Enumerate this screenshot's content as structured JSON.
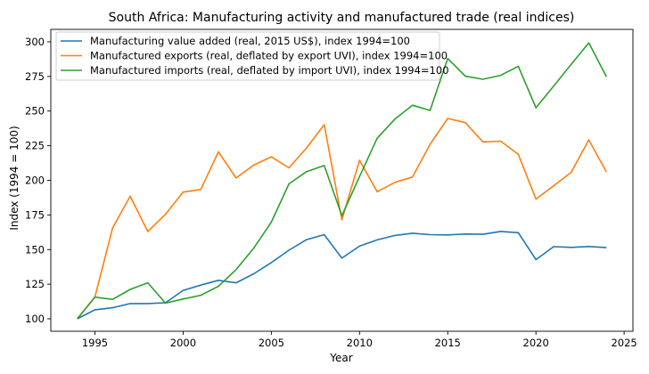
{
  "chart_data": {
    "type": "line",
    "title": "South Africa: Manufacturing activity and manufactured trade (real indices)",
    "xlabel": "Year",
    "ylabel": "Index (1994 = 100)",
    "xlim": [
      1992.5,
      2025.5
    ],
    "ylim": [
      91,
      309
    ],
    "xticks": [
      1995,
      2000,
      2005,
      2010,
      2015,
      2020,
      2025
    ],
    "yticks": [
      100,
      125,
      150,
      175,
      200,
      225,
      250,
      275,
      300
    ],
    "grid": false,
    "legend_position": "top-left",
    "x": [
      1994,
      1995,
      1996,
      1997,
      1998,
      1999,
      2000,
      2001,
      2002,
      2003,
      2004,
      2005,
      2006,
      2007,
      2008,
      2009,
      2010,
      2011,
      2012,
      2013,
      2014,
      2015,
      2016,
      2017,
      2018,
      2019,
      2020,
      2021,
      2022,
      2023,
      2024
    ],
    "series": [
      {
        "name": "Manufacturing value added (real, 2015 US$), index 1994=100",
        "color": "#1f77b4",
        "values": [
          100,
          106.5,
          108,
          111,
          111,
          111.6,
          120.5,
          124.3,
          127.8,
          126,
          132.5,
          140.6,
          149.5,
          157.2,
          160.8,
          143.8,
          152.5,
          157,
          160.2,
          161.8,
          160.8,
          160.6,
          161.2,
          161,
          163.1,
          162.2,
          142.7,
          152.1,
          151.6,
          152.2,
          151.4
        ]
      },
      {
        "name": "Manufactured exports (real, deflated by export UVI), index 1994=100",
        "color": "#ff7f0e",
        "values": [
          100,
          115.8,
          165.5,
          188.5,
          163,
          175.5,
          191.5,
          193.4,
          220.6,
          201.7,
          211,
          217,
          209,
          223.4,
          240.2,
          171.5,
          214.5,
          191.8,
          198.5,
          202.4,
          226,
          244.7,
          241.7,
          227.7,
          228.3,
          218.7,
          186.4,
          196,
          205.8,
          229.2,
          206
        ]
      },
      {
        "name": "Manufactured imports (real, deflated by import UVI), index 1994=100",
        "color": "#2ca02c",
        "values": [
          100,
          115.6,
          114,
          121.2,
          126,
          111.3,
          114.3,
          117,
          123.5,
          135.5,
          151,
          169.8,
          197.4,
          206.3,
          210.7,
          174.5,
          202.7,
          230.4,
          244.2,
          254.2,
          250.5,
          288,
          275.2,
          273,
          275.8,
          282.4,
          252.4,
          268,
          283.7,
          299.3,
          274.8
        ]
      }
    ]
  }
}
